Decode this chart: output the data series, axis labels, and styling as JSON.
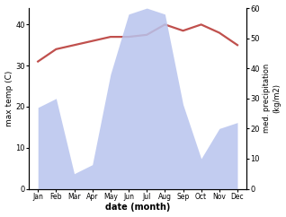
{
  "months": [
    "Jan",
    "Feb",
    "Mar",
    "Apr",
    "May",
    "Jun",
    "Jul",
    "Aug",
    "Sep",
    "Oct",
    "Nov",
    "Dec"
  ],
  "temperature": [
    31,
    34,
    35,
    36,
    37,
    37,
    37.5,
    40,
    38.5,
    40,
    38,
    35
  ],
  "precipitation": [
    27,
    30,
    5,
    8,
    38,
    58,
    60,
    58,
    28,
    10,
    20,
    22
  ],
  "temp_color": "#c0504d",
  "precip_color": "#b8c4ee",
  "xlabel": "date (month)",
  "ylabel_left": "max temp (C)",
  "ylabel_right": "med. precipitation\n(kg/m2)",
  "ylim_left": [
    0,
    44
  ],
  "ylim_right": [
    0,
    60
  ],
  "yticks_left": [
    0,
    10,
    20,
    30,
    40
  ],
  "yticks_right": [
    0,
    10,
    20,
    30,
    40,
    50,
    60
  ],
  "bg_color": "#ffffff",
  "temp_linewidth": 1.6
}
